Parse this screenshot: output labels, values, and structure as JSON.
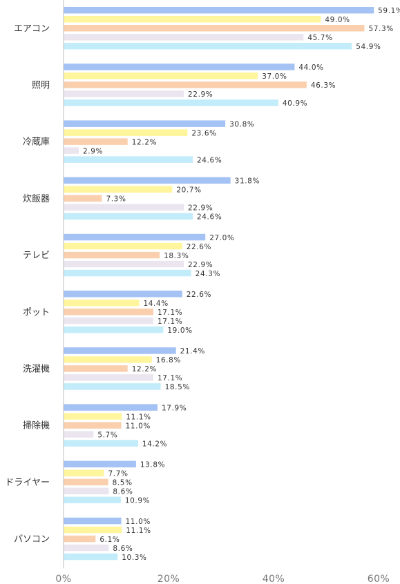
{
  "chart_data": {
    "type": "bar",
    "orientation": "horizontal",
    "categories": [
      "エアコン",
      "照明",
      "冷蔵庫",
      "炊飯器",
      "テレビ",
      "ポット",
      "洗濯機",
      "掃除機",
      "ドライヤー",
      "パソコン"
    ],
    "series": [
      {
        "values": [
          59.1,
          44.0,
          30.8,
          31.8,
          27.0,
          22.6,
          21.4,
          17.9,
          13.8,
          11.0
        ],
        "color": "#a4c2f4"
      },
      {
        "values": [
          49.0,
          37.0,
          23.6,
          20.7,
          22.6,
          14.4,
          16.8,
          11.1,
          7.7,
          11.1
        ],
        "color": "#fff59d"
      },
      {
        "values": [
          57.3,
          46.3,
          12.2,
          7.3,
          18.3,
          17.1,
          12.2,
          11.0,
          8.5,
          6.1
        ],
        "color": "#f9cfae"
      },
      {
        "values": [
          45.7,
          22.9,
          2.9,
          22.9,
          22.9,
          17.1,
          17.1,
          5.7,
          8.6,
          8.6
        ],
        "color": "#ebe5ef"
      },
      {
        "values": [
          54.9,
          40.9,
          24.6,
          24.6,
          24.3,
          19.0,
          18.5,
          14.2,
          10.9,
          10.3
        ],
        "color": "#c2ecf9"
      }
    ],
    "value_suffix": "%",
    "xlim": [
      0,
      60
    ],
    "xticks": [
      "0%",
      "20%",
      "40%",
      "60%"
    ],
    "title": "",
    "xlabel": "",
    "ylabel": "",
    "grid": false,
    "legend": "none"
  }
}
